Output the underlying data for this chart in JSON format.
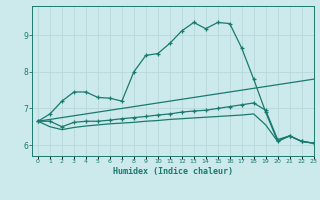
{
  "xlabel": "Humidex (Indice chaleur)",
  "xlim": [
    -0.5,
    23
  ],
  "ylim": [
    5.7,
    9.8
  ],
  "yticks": [
    6,
    7,
    8,
    9
  ],
  "xticks": [
    0,
    1,
    2,
    3,
    4,
    5,
    6,
    7,
    8,
    9,
    10,
    11,
    12,
    13,
    14,
    15,
    16,
    17,
    18,
    19,
    20,
    21,
    22,
    23
  ],
  "bg_color": "#cce9ec",
  "line_color": "#1a7a6e",
  "grid_color": "#b8d8db",
  "line1_x": [
    0,
    1,
    2,
    3,
    4,
    5,
    6,
    7,
    8,
    9,
    10,
    11,
    12,
    13,
    14,
    15,
    16,
    17,
    18,
    19,
    20,
    21,
    22,
    23
  ],
  "line1_y": [
    6.65,
    6.85,
    7.2,
    7.45,
    7.45,
    7.3,
    7.28,
    7.2,
    8.0,
    8.45,
    8.5,
    8.78,
    9.12,
    9.35,
    9.18,
    9.35,
    9.32,
    8.65,
    7.8,
    6.9,
    6.1,
    6.25,
    6.1,
    6.05
  ],
  "line1_markers": true,
  "line2_x": [
    0,
    23
  ],
  "line2_y": [
    6.65,
    7.8
  ],
  "line2_markers": false,
  "line3_x": [
    0,
    1,
    2,
    3,
    4,
    5,
    6,
    7,
    8,
    9,
    10,
    11,
    12,
    13,
    14,
    15,
    16,
    17,
    18,
    19,
    20,
    21,
    22,
    23
  ],
  "line3_y": [
    6.65,
    6.65,
    6.5,
    6.62,
    6.65,
    6.65,
    6.68,
    6.72,
    6.75,
    6.78,
    6.82,
    6.85,
    6.9,
    6.93,
    6.95,
    7.0,
    7.05,
    7.1,
    7.15,
    6.95,
    6.15,
    6.25,
    6.1,
    6.05
  ],
  "line3_markers": true,
  "line4_x": [
    0,
    1,
    2,
    3,
    4,
    5,
    6,
    7,
    8,
    9,
    10,
    11,
    12,
    13,
    14,
    15,
    16,
    17,
    18,
    19,
    20,
    21,
    22,
    23
  ],
  "line4_y": [
    6.65,
    6.5,
    6.42,
    6.48,
    6.52,
    6.55,
    6.58,
    6.6,
    6.62,
    6.65,
    6.67,
    6.7,
    6.72,
    6.74,
    6.76,
    6.78,
    6.8,
    6.82,
    6.85,
    6.55,
    6.1,
    6.25,
    6.1,
    6.05
  ],
  "line4_markers": false
}
